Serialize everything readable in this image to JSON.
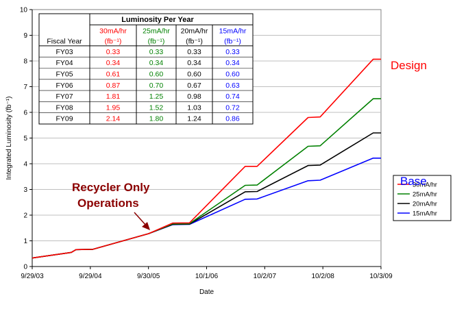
{
  "chart_data": {
    "type": "line",
    "title": "",
    "xlabel": "Date",
    "ylabel": "Integrated Luminosity (fb⁻¹)",
    "ylim": [
      0,
      10
    ],
    "y_ticks": [
      "0",
      "1",
      "2",
      "3",
      "4",
      "5",
      "6",
      "7",
      "8",
      "9",
      "10"
    ],
    "x_ticks": [
      "9/29/03",
      "9/29/04",
      "9/30/05",
      "10/1/06",
      "10/2/07",
      "10/2/08",
      "10/3/09"
    ],
    "x_range": [
      "2003-09-29",
      "2009-10-03"
    ],
    "grid": "horizontal",
    "legend_placement": "right",
    "series": [
      {
        "name": "30mA/hr",
        "color": "#ff0000",
        "points": [
          [
            "2003-09-29",
            0.33
          ],
          [
            "2004-06-01",
            0.55
          ],
          [
            "2004-07-01",
            0.66
          ],
          [
            "2004-10-15",
            0.67
          ],
          [
            "2005-10-01",
            1.28
          ],
          [
            "2006-03-01",
            1.69
          ],
          [
            "2006-06-15",
            1.7
          ],
          [
            "2007-06-01",
            3.9
          ],
          [
            "2007-08-15",
            3.9
          ],
          [
            "2008-07-01",
            5.8
          ],
          [
            "2008-09-15",
            5.82
          ],
          [
            "2009-08-15",
            8.07
          ],
          [
            "2009-10-03",
            8.07
          ]
        ]
      },
      {
        "name": "25mA/hr",
        "color": "#008000",
        "points": [
          [
            "2003-09-29",
            0.33
          ],
          [
            "2004-06-01",
            0.55
          ],
          [
            "2004-07-01",
            0.66
          ],
          [
            "2004-10-15",
            0.67
          ],
          [
            "2005-10-01",
            1.28
          ],
          [
            "2006-03-01",
            1.66
          ],
          [
            "2006-06-15",
            1.67
          ],
          [
            "2007-06-01",
            3.16
          ],
          [
            "2007-08-15",
            3.17
          ],
          [
            "2008-07-01",
            4.68
          ],
          [
            "2008-09-15",
            4.7
          ],
          [
            "2009-08-15",
            6.53
          ],
          [
            "2009-10-03",
            6.53
          ]
        ]
      },
      {
        "name": "20mA/hr",
        "color": "#000000",
        "points": [
          [
            "2003-09-29",
            0.33
          ],
          [
            "2004-06-01",
            0.55
          ],
          [
            "2004-07-01",
            0.66
          ],
          [
            "2004-10-15",
            0.67
          ],
          [
            "2005-10-01",
            1.28
          ],
          [
            "2006-03-01",
            1.64
          ],
          [
            "2006-06-15",
            1.65
          ],
          [
            "2007-06-01",
            2.91
          ],
          [
            "2007-08-15",
            2.92
          ],
          [
            "2008-07-01",
            3.93
          ],
          [
            "2008-09-15",
            3.95
          ],
          [
            "2009-08-15",
            5.2
          ],
          [
            "2009-10-03",
            5.2
          ]
        ]
      },
      {
        "name": "15mA/hr",
        "color": "#0000ff",
        "points": [
          [
            "2003-09-29",
            0.33
          ],
          [
            "2004-06-01",
            0.55
          ],
          [
            "2004-07-01",
            0.66
          ],
          [
            "2004-10-15",
            0.67
          ],
          [
            "2005-10-01",
            1.28
          ],
          [
            "2006-03-01",
            1.63
          ],
          [
            "2006-06-15",
            1.64
          ],
          [
            "2007-06-01",
            2.62
          ],
          [
            "2007-08-15",
            2.63
          ],
          [
            "2008-07-01",
            3.34
          ],
          [
            "2008-09-15",
            3.36
          ],
          [
            "2009-08-15",
            4.22
          ],
          [
            "2009-10-03",
            4.22
          ]
        ]
      }
    ],
    "annotations": {
      "design": "Design",
      "base": "Base",
      "recycler_line1": "Recycler Only",
      "recycler_line2": "Operations"
    },
    "table": {
      "title": "Luminosity Per Year",
      "columns": [
        {
          "header": "30mA/hr",
          "color": "#ff0000"
        },
        {
          "header": "25mA/hr",
          "color": "#008000"
        },
        {
          "header": "20mA/hr",
          "color": "#000000"
        },
        {
          "header": "15mA/hr",
          "color": "#0000ff"
        }
      ],
      "unit_label": "(fb⁻¹)",
      "row_header": "Fiscal Year",
      "rows": [
        {
          "year": "FY03",
          "values": [
            "0.33",
            "0.33",
            "0.33",
            "0.33"
          ]
        },
        {
          "year": "FY04",
          "values": [
            "0.34",
            "0.34",
            "0.34",
            "0.34"
          ]
        },
        {
          "year": "FY05",
          "values": [
            "0.61",
            "0.60",
            "0.60",
            "0.60"
          ]
        },
        {
          "year": "FY06",
          "values": [
            "0.87",
            "0.70",
            "0.67",
            "0.63"
          ]
        },
        {
          "year": "FY07",
          "values": [
            "1.81",
            "1.25",
            "0.98",
            "0.74"
          ]
        },
        {
          "year": "FY08",
          "values": [
            "1.95",
            "1.52",
            "1.03",
            "0.72"
          ]
        },
        {
          "year": "FY09",
          "values": [
            "2.14",
            "1.80",
            "1.24",
            "0.86"
          ]
        }
      ]
    }
  }
}
